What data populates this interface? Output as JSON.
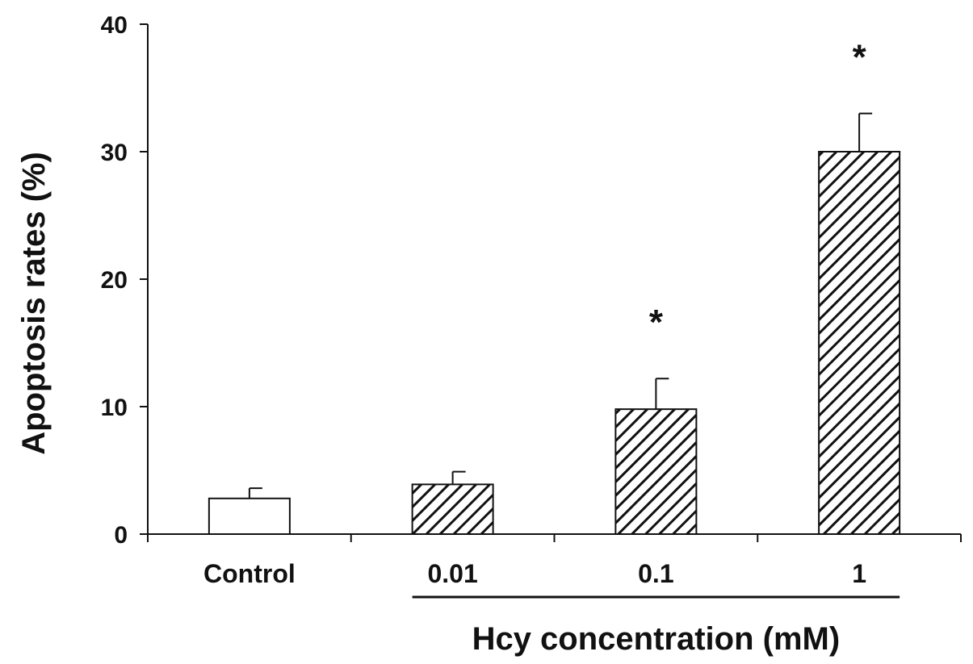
{
  "chart_data": {
    "type": "bar",
    "categories": [
      "Control",
      "0.01",
      "0.1",
      "1"
    ],
    "values": [
      2.8,
      3.9,
      9.8,
      30.0
    ],
    "error_bars": [
      0.8,
      1.0,
      2.4,
      3.0
    ],
    "bar_styles": [
      "solid",
      "hatched",
      "hatched",
      "hatched"
    ],
    "significance": [
      "",
      "",
      "*",
      "*"
    ],
    "ylabel": "Apoptosis rates (%)",
    "xlabel": "Hcy concentration (mM)",
    "xlabel_bracket_spans": [
      "0.01",
      "1"
    ],
    "ylim": [
      0,
      40
    ],
    "yticks": [
      0,
      10,
      20,
      30,
      40
    ],
    "grid": false,
    "legend": "none",
    "colors": {
      "bar_edge": "#111111",
      "bar_fill": "#ffffff",
      "hatch": "#111111",
      "axis": "#111111"
    }
  }
}
